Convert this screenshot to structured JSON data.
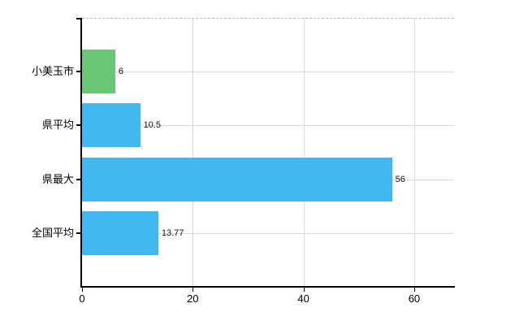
{
  "chart_data": {
    "type": "bar",
    "orientation": "horizontal",
    "title": "",
    "categories": [
      "小美玉市",
      "県平均",
      "県最大",
      "全国平均"
    ],
    "values": [
      6,
      10.5,
      56,
      13.77
    ],
    "value_labels": [
      "6",
      "10.5",
      "56",
      "13.77"
    ],
    "series_colors": [
      "#68c878",
      "#42b8f0",
      "#42b8f0",
      "#42b8f0"
    ],
    "xlim": [
      0,
      67.2
    ],
    "x_ticks": [
      0,
      20,
      40,
      60
    ],
    "x_tick_labels": [
      "0",
      "20",
      "40",
      "60"
    ],
    "grid": true,
    "legend": false
  },
  "colors": {
    "background": "#ffffff",
    "axis": "#000000",
    "gridline": "#d5dbd5",
    "top_border_dashed": "#bcbcbc",
    "bar_green": "#68c878",
    "bar_blue": "#42b8f0",
    "category_text": "#000000",
    "value_text": "#111111"
  }
}
